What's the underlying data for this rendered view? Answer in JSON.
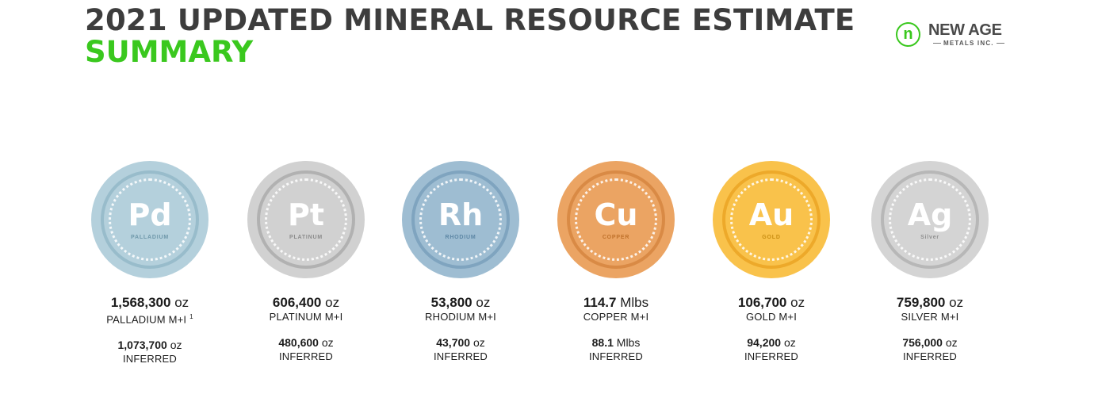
{
  "header": {
    "title_line1": "2021 UPDATED MINERAL RESOURCE ESTIMATE",
    "title_line2": "SUMMARY",
    "title_color": "#3d3d3d",
    "accent_color": "#3ac81e"
  },
  "logo": {
    "mark": "n",
    "name": "NEW AGE",
    "subtitle": "METALS INC."
  },
  "metals": [
    {
      "symbol": "Pd",
      "name": "PALLADIUM",
      "mi_value": "1,568,300",
      "mi_unit": "oz",
      "mi_label": "PALLADIUM M+I",
      "footnote": "1",
      "inf_value": "1,073,700",
      "inf_unit": "oz",
      "inf_label": "INFERRED",
      "colors": {
        "outer": "#b4d0dc",
        "ring": "#98bccb",
        "text": "#6f98aa"
      }
    },
    {
      "symbol": "Pt",
      "name": "PLATINUM",
      "mi_value": "606,400",
      "mi_unit": "oz",
      "mi_label": "PLATINUM M+I",
      "footnote": "",
      "inf_value": "480,600",
      "inf_unit": "oz",
      "inf_label": "INFERRED",
      "colors": {
        "outer": "#d1d1d1",
        "ring": "#b1b1b1",
        "text": "#8c8c8c"
      }
    },
    {
      "symbol": "Rh",
      "name": "RHODIUM",
      "mi_value": "53,800",
      "mi_unit": "oz",
      "mi_label": "RHODIUM M+I",
      "footnote": "",
      "inf_value": "43,700",
      "inf_unit": "oz",
      "inf_label": "INFERRED",
      "colors": {
        "outer": "#9ebdd2",
        "ring": "#7fa4bf",
        "text": "#5d87a5"
      }
    },
    {
      "symbol": "Cu",
      "name": "COPPER",
      "mi_value": "114.7",
      "mi_unit": "Mlbs",
      "mi_label": "COPPER M+I",
      "footnote": "",
      "inf_value": "88.1",
      "inf_unit": "Mlbs",
      "inf_label": "INFERRED",
      "colors": {
        "outer": "#eba463",
        "ring": "#d98a45",
        "text": "#c0722c"
      }
    },
    {
      "symbol": "Au",
      "name": "GOLD",
      "mi_value": "106,700",
      "mi_unit": "oz",
      "mi_label": "GOLD M+I",
      "footnote": "",
      "inf_value": "94,200",
      "inf_unit": "oz",
      "inf_label": "INFERRED",
      "colors": {
        "outer": "#f9c24b",
        "ring": "#eda92a",
        "text": "#c98e12"
      }
    },
    {
      "symbol": "Ag",
      "name": "Silver",
      "mi_value": "759,800",
      "mi_unit": "oz",
      "mi_label": "SILVER M+I",
      "footnote": "",
      "inf_value": "756,000",
      "inf_unit": "oz",
      "inf_label": "INFERRED",
      "colors": {
        "outer": "#d4d4d4",
        "ring": "#b7b7b7",
        "text": "#909090"
      }
    }
  ]
}
